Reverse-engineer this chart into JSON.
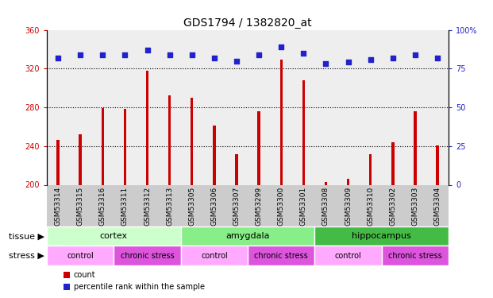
{
  "title": "GDS1794 / 1382820_at",
  "samples": [
    "GSM53314",
    "GSM53315",
    "GSM53316",
    "GSM53311",
    "GSM53312",
    "GSM53313",
    "GSM53305",
    "GSM53306",
    "GSM53307",
    "GSM53299",
    "GSM53300",
    "GSM53301",
    "GSM53308",
    "GSM53309",
    "GSM53310",
    "GSM53302",
    "GSM53303",
    "GSM53304"
  ],
  "counts": [
    246,
    252,
    279,
    278,
    318,
    292,
    290,
    261,
    232,
    276,
    329,
    308,
    203,
    206,
    232,
    244,
    276,
    241
  ],
  "percentiles": [
    82,
    84,
    84,
    84,
    87,
    84,
    84,
    82,
    80,
    84,
    89,
    85,
    78,
    79,
    81,
    82,
    84,
    82
  ],
  "ylim_left": [
    200,
    360
  ],
  "ylim_right": [
    0,
    100
  ],
  "yticks_left": [
    200,
    240,
    280,
    320,
    360
  ],
  "yticks_right": [
    0,
    25,
    50,
    75,
    100
  ],
  "bar_color": "#cc0000",
  "dot_color": "#2222cc",
  "tissue_groups": [
    {
      "label": "cortex",
      "start": 0,
      "end": 6,
      "color": "#ccffcc"
    },
    {
      "label": "amygdala",
      "start": 6,
      "end": 12,
      "color": "#88ee88"
    },
    {
      "label": "hippocampus",
      "start": 12,
      "end": 18,
      "color": "#44bb44"
    }
  ],
  "stress_groups": [
    {
      "label": "control",
      "start": 0,
      "end": 3,
      "color": "#ffaaff"
    },
    {
      "label": "chronic stress",
      "start": 3,
      "end": 6,
      "color": "#dd55dd"
    },
    {
      "label": "control",
      "start": 6,
      "end": 9,
      "color": "#ffaaff"
    },
    {
      "label": "chronic stress",
      "start": 9,
      "end": 12,
      "color": "#dd55dd"
    },
    {
      "label": "control",
      "start": 12,
      "end": 15,
      "color": "#ffaaff"
    },
    {
      "label": "chronic stress",
      "start": 15,
      "end": 18,
      "color": "#dd55dd"
    }
  ],
  "background_color": "#ffffff",
  "axis_bg_color": "#eeeeee",
  "title_fontsize": 10,
  "tick_fontsize": 7,
  "label_fontsize": 8,
  "bar_width": 0.12
}
